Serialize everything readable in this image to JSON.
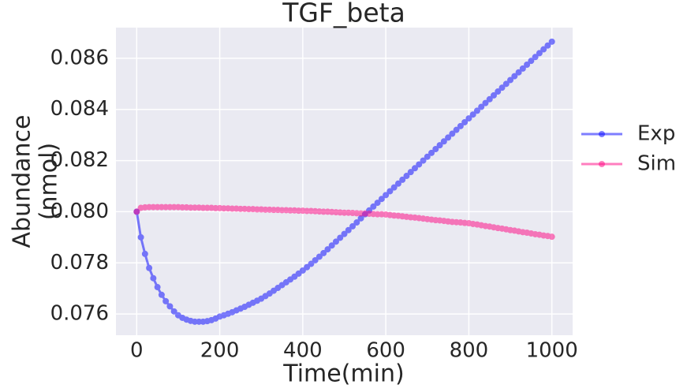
{
  "chart_data": {
    "type": "line",
    "title": "TGF_beta",
    "xlabel": "Time(min)",
    "ylabel": [
      "Abundance",
      "(nmol)"
    ],
    "x": [
      0,
      10,
      20,
      30,
      40,
      50,
      60,
      70,
      80,
      90,
      100,
      110,
      120,
      130,
      140,
      150,
      160,
      170,
      180,
      190,
      200,
      210,
      220,
      230,
      240,
      250,
      260,
      270,
      280,
      290,
      300,
      310,
      320,
      330,
      340,
      350,
      360,
      370,
      380,
      390,
      400,
      410,
      420,
      430,
      440,
      450,
      460,
      470,
      480,
      490,
      500,
      510,
      520,
      530,
      540,
      550,
      560,
      570,
      580,
      590,
      600,
      610,
      620,
      630,
      640,
      650,
      660,
      670,
      680,
      690,
      700,
      710,
      720,
      730,
      740,
      750,
      760,
      770,
      780,
      790,
      800,
      810,
      820,
      830,
      840,
      850,
      860,
      870,
      880,
      890,
      900,
      910,
      920,
      930,
      940,
      950,
      960,
      970,
      980,
      990,
      1000
    ],
    "series": [
      {
        "name": "Exp",
        "color": "#0000ff",
        "values": [
          0.08,
          0.079,
          0.07835,
          0.0778,
          0.0774,
          0.07705,
          0.07675,
          0.0765,
          0.0763,
          0.0761,
          0.07595,
          0.07585,
          0.07578,
          0.07573,
          0.0757,
          0.0757,
          0.0757,
          0.07572,
          0.07576,
          0.07582,
          0.0759,
          0.07595,
          0.07601,
          0.07607,
          0.07614,
          0.07621,
          0.07628,
          0.07636,
          0.07644,
          0.07652,
          0.0766,
          0.0767,
          0.0768,
          0.07691,
          0.07702,
          0.07713,
          0.07724,
          0.07735,
          0.07746,
          0.07758,
          0.0777,
          0.07783,
          0.07796,
          0.0781,
          0.07824,
          0.07838,
          0.07853,
          0.07868,
          0.07883,
          0.07898,
          0.07913,
          0.07928,
          0.07943,
          0.07958,
          0.07974,
          0.0799,
          0.08005,
          0.0802,
          0.08035,
          0.0805,
          0.08065,
          0.0808,
          0.08095,
          0.0811,
          0.08125,
          0.0814,
          0.08155,
          0.0817,
          0.08185,
          0.082,
          0.08215,
          0.0823,
          0.08245,
          0.0826,
          0.08275,
          0.0829,
          0.08305,
          0.0832,
          0.08335,
          0.0835,
          0.08365,
          0.0838,
          0.08395,
          0.0841,
          0.08425,
          0.0844,
          0.08455,
          0.0847,
          0.08485,
          0.085,
          0.08515,
          0.0853,
          0.08545,
          0.0856,
          0.08575,
          0.0859,
          0.08605,
          0.0862,
          0.08635,
          0.0865,
          0.08665
        ]
      },
      {
        "name": "Sim",
        "color": "#ff0080",
        "values": [
          0.08,
          0.08015,
          0.08017,
          0.08018,
          0.08018,
          0.08018,
          0.08018,
          0.08018,
          0.08018,
          0.08018,
          0.08018,
          0.08017,
          0.08017,
          0.08016,
          0.08016,
          0.08016,
          0.08015,
          0.08015,
          0.08015,
          0.08014,
          0.08014,
          0.08013,
          0.08013,
          0.08012,
          0.08012,
          0.08011,
          0.08011,
          0.0801,
          0.0801,
          0.08009,
          0.08009,
          0.08008,
          0.08008,
          0.08007,
          0.08007,
          0.08006,
          0.08006,
          0.08005,
          0.08005,
          0.08004,
          0.08004,
          0.08003,
          0.08003,
          0.08002,
          0.08001,
          0.08,
          0.08,
          0.07999,
          0.07998,
          0.07997,
          0.07996,
          0.07996,
          0.07995,
          0.07994,
          0.07993,
          0.07993,
          0.07992,
          0.07991,
          0.0799,
          0.0799,
          0.07989,
          0.07987,
          0.07985,
          0.07984,
          0.07982,
          0.0798,
          0.07978,
          0.07977,
          0.07975,
          0.07973,
          0.07971,
          0.07969,
          0.07967,
          0.07966,
          0.07964,
          0.07962,
          0.0796,
          0.07959,
          0.07958,
          0.07956,
          0.07955,
          0.07952,
          0.0795,
          0.07947,
          0.07944,
          0.07942,
          0.07939,
          0.07936,
          0.07934,
          0.07931,
          0.07928,
          0.07926,
          0.07923,
          0.0792,
          0.07918,
          0.07915,
          0.07912,
          0.0791,
          0.07907,
          0.07905,
          0.07902
        ]
      }
    ],
    "xlim": [
      -50,
      1050
    ],
    "xticks": [
      0,
      200,
      400,
      600,
      800,
      1000
    ],
    "ylim": [
      0.07517,
      0.0872
    ],
    "yticks": [
      0.076,
      0.078,
      {
        "value": 0.08,
        "label": "0.080"
      },
      0.082,
      0.084,
      0.086
    ],
    "grid": true,
    "legend": "outside-right"
  }
}
